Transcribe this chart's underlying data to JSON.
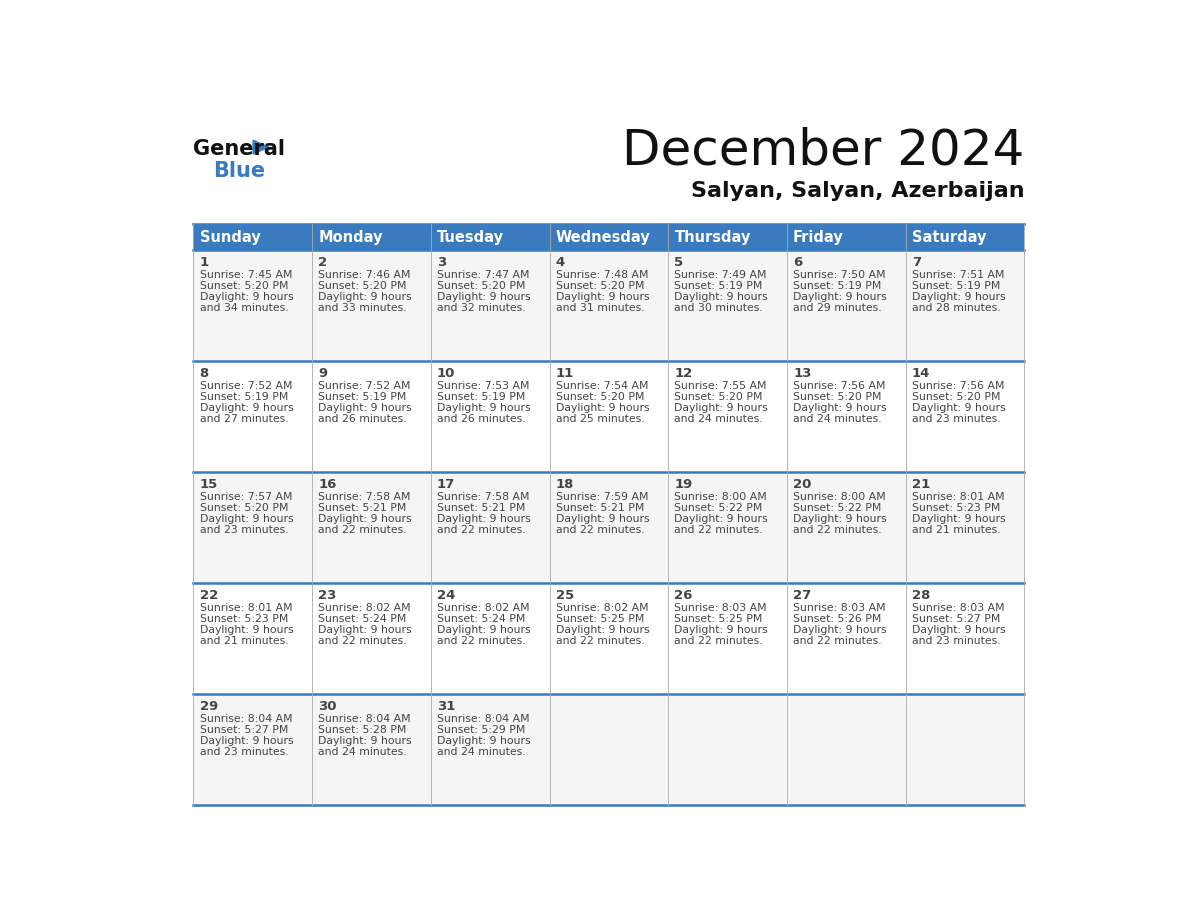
{
  "title": "December 2024",
  "subtitle": "Salyan, Salyan, Azerbaijan",
  "header_color": "#3a7abf",
  "header_text_color": "#ffffff",
  "days_of_week": [
    "Sunday",
    "Monday",
    "Tuesday",
    "Wednesday",
    "Thursday",
    "Friday",
    "Saturday"
  ],
  "cell_bg_odd": "#f5f5f5",
  "cell_bg_even": "#ffffff",
  "border_color": "#3a7abf",
  "cell_border_color": "#aaaaaa",
  "text_color": "#444444",
  "weeks": [
    [
      {
        "day": 1,
        "sunrise": "7:45 AM",
        "sunset": "5:20 PM",
        "daylight_hours": 9,
        "daylight_minutes": 34
      },
      {
        "day": 2,
        "sunrise": "7:46 AM",
        "sunset": "5:20 PM",
        "daylight_hours": 9,
        "daylight_minutes": 33
      },
      {
        "day": 3,
        "sunrise": "7:47 AM",
        "sunset": "5:20 PM",
        "daylight_hours": 9,
        "daylight_minutes": 32
      },
      {
        "day": 4,
        "sunrise": "7:48 AM",
        "sunset": "5:20 PM",
        "daylight_hours": 9,
        "daylight_minutes": 31
      },
      {
        "day": 5,
        "sunrise": "7:49 AM",
        "sunset": "5:19 PM",
        "daylight_hours": 9,
        "daylight_minutes": 30
      },
      {
        "day": 6,
        "sunrise": "7:50 AM",
        "sunset": "5:19 PM",
        "daylight_hours": 9,
        "daylight_minutes": 29
      },
      {
        "day": 7,
        "sunrise": "7:51 AM",
        "sunset": "5:19 PM",
        "daylight_hours": 9,
        "daylight_minutes": 28
      }
    ],
    [
      {
        "day": 8,
        "sunrise": "7:52 AM",
        "sunset": "5:19 PM",
        "daylight_hours": 9,
        "daylight_minutes": 27
      },
      {
        "day": 9,
        "sunrise": "7:52 AM",
        "sunset": "5:19 PM",
        "daylight_hours": 9,
        "daylight_minutes": 26
      },
      {
        "day": 10,
        "sunrise": "7:53 AM",
        "sunset": "5:19 PM",
        "daylight_hours": 9,
        "daylight_minutes": 26
      },
      {
        "day": 11,
        "sunrise": "7:54 AM",
        "sunset": "5:20 PM",
        "daylight_hours": 9,
        "daylight_minutes": 25
      },
      {
        "day": 12,
        "sunrise": "7:55 AM",
        "sunset": "5:20 PM",
        "daylight_hours": 9,
        "daylight_minutes": 24
      },
      {
        "day": 13,
        "sunrise": "7:56 AM",
        "sunset": "5:20 PM",
        "daylight_hours": 9,
        "daylight_minutes": 24
      },
      {
        "day": 14,
        "sunrise": "7:56 AM",
        "sunset": "5:20 PM",
        "daylight_hours": 9,
        "daylight_minutes": 23
      }
    ],
    [
      {
        "day": 15,
        "sunrise": "7:57 AM",
        "sunset": "5:20 PM",
        "daylight_hours": 9,
        "daylight_minutes": 23
      },
      {
        "day": 16,
        "sunrise": "7:58 AM",
        "sunset": "5:21 PM",
        "daylight_hours": 9,
        "daylight_minutes": 22
      },
      {
        "day": 17,
        "sunrise": "7:58 AM",
        "sunset": "5:21 PM",
        "daylight_hours": 9,
        "daylight_minutes": 22
      },
      {
        "day": 18,
        "sunrise": "7:59 AM",
        "sunset": "5:21 PM",
        "daylight_hours": 9,
        "daylight_minutes": 22
      },
      {
        "day": 19,
        "sunrise": "8:00 AM",
        "sunset": "5:22 PM",
        "daylight_hours": 9,
        "daylight_minutes": 22
      },
      {
        "day": 20,
        "sunrise": "8:00 AM",
        "sunset": "5:22 PM",
        "daylight_hours": 9,
        "daylight_minutes": 22
      },
      {
        "day": 21,
        "sunrise": "8:01 AM",
        "sunset": "5:23 PM",
        "daylight_hours": 9,
        "daylight_minutes": 21
      }
    ],
    [
      {
        "day": 22,
        "sunrise": "8:01 AM",
        "sunset": "5:23 PM",
        "daylight_hours": 9,
        "daylight_minutes": 21
      },
      {
        "day": 23,
        "sunrise": "8:02 AM",
        "sunset": "5:24 PM",
        "daylight_hours": 9,
        "daylight_minutes": 22
      },
      {
        "day": 24,
        "sunrise": "8:02 AM",
        "sunset": "5:24 PM",
        "daylight_hours": 9,
        "daylight_minutes": 22
      },
      {
        "day": 25,
        "sunrise": "8:02 AM",
        "sunset": "5:25 PM",
        "daylight_hours": 9,
        "daylight_minutes": 22
      },
      {
        "day": 26,
        "sunrise": "8:03 AM",
        "sunset": "5:25 PM",
        "daylight_hours": 9,
        "daylight_minutes": 22
      },
      {
        "day": 27,
        "sunrise": "8:03 AM",
        "sunset": "5:26 PM",
        "daylight_hours": 9,
        "daylight_minutes": 22
      },
      {
        "day": 28,
        "sunrise": "8:03 AM",
        "sunset": "5:27 PM",
        "daylight_hours": 9,
        "daylight_minutes": 23
      }
    ],
    [
      {
        "day": 29,
        "sunrise": "8:04 AM",
        "sunset": "5:27 PM",
        "daylight_hours": 9,
        "daylight_minutes": 23
      },
      {
        "day": 30,
        "sunrise": "8:04 AM",
        "sunset": "5:28 PM",
        "daylight_hours": 9,
        "daylight_minutes": 24
      },
      {
        "day": 31,
        "sunrise": "8:04 AM",
        "sunset": "5:29 PM",
        "daylight_hours": 9,
        "daylight_minutes": 24
      },
      null,
      null,
      null,
      null
    ]
  ]
}
